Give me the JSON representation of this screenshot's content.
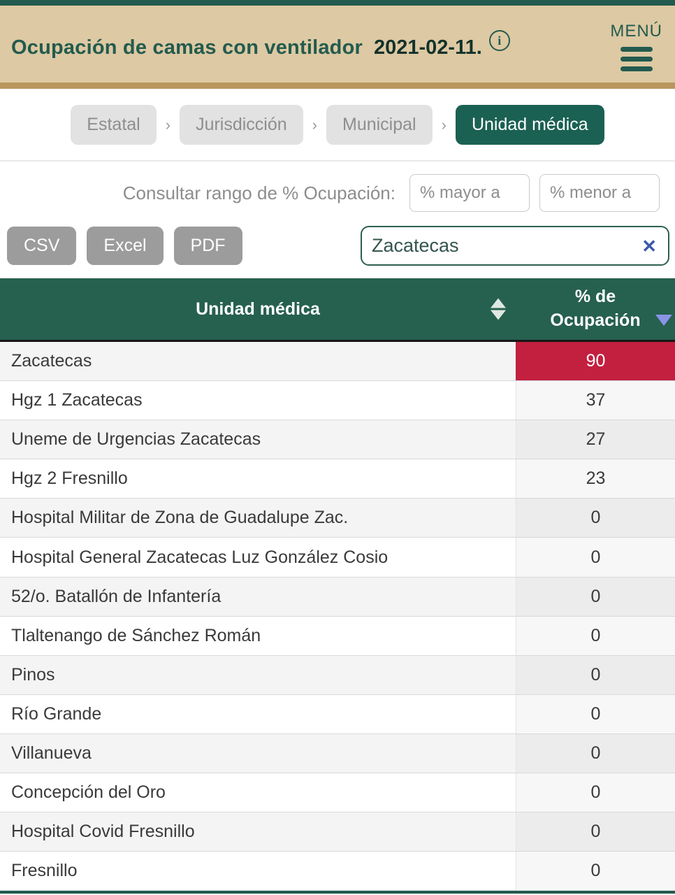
{
  "header": {
    "title": "Ocupación de camas con ventilador",
    "date": "2021-02-11.",
    "info_icon_glyph": "i",
    "menu_label": "MENÚ"
  },
  "breadcrumb": {
    "separator": "›",
    "items": [
      {
        "label": "Estatal",
        "active": false
      },
      {
        "label": "Jurisdicción",
        "active": false
      },
      {
        "label": "Municipal",
        "active": false
      },
      {
        "label": "Unidad médica",
        "active": true
      }
    ]
  },
  "filters": {
    "range_label": "Consultar rango de % Ocupación:",
    "greater_placeholder": "% mayor a",
    "less_placeholder": "% menor a"
  },
  "toolbar": {
    "export_buttons": [
      "CSV",
      "Excel",
      "PDF"
    ],
    "search_value": "Zacatecas",
    "clear_icon": "✕"
  },
  "table": {
    "col1_header": "Unidad médica",
    "col2_header_line1": "% de",
    "col2_header_line2": "Ocupación",
    "sorted_by": "% de Ocupación",
    "sort_direction": "descending",
    "rows": [
      {
        "unidad": "Zacatecas",
        "ocupacion": "90",
        "highlight": true
      },
      {
        "unidad": "Hgz 1 Zacatecas",
        "ocupacion": "37",
        "highlight": false
      },
      {
        "unidad": "Uneme de Urgencias Zacatecas",
        "ocupacion": "27",
        "highlight": false
      },
      {
        "unidad": "Hgz 2 Fresnillo",
        "ocupacion": "23",
        "highlight": false
      },
      {
        "unidad": "Hospital Militar de Zona de Guadalupe Zac.",
        "ocupacion": "0",
        "highlight": false
      },
      {
        "unidad": "Hospital General Zacatecas Luz González Cosio",
        "ocupacion": "0",
        "highlight": false
      },
      {
        "unidad": "52/o. Batallón de Infantería",
        "ocupacion": "0",
        "highlight": false
      },
      {
        "unidad": "Tlaltenango de Sánchez Román",
        "ocupacion": "0",
        "highlight": false
      },
      {
        "unidad": "Pinos",
        "ocupacion": "0",
        "highlight": false
      },
      {
        "unidad": "Río Grande",
        "ocupacion": "0",
        "highlight": false
      },
      {
        "unidad": "Villanueva",
        "ocupacion": "0",
        "highlight": false
      },
      {
        "unidad": "Concepción del Oro",
        "ocupacion": "0",
        "highlight": false
      },
      {
        "unidad": "Hospital Covid Fresnillo",
        "ocupacion": "0",
        "highlight": false
      },
      {
        "unidad": "Fresnillo",
        "ocupacion": "0",
        "highlight": false
      }
    ]
  },
  "colors": {
    "brand_green": "#235B4E",
    "header_tan": "#DDC9A3",
    "gold_strip": "#B9965E",
    "table_header_green": "#26604F",
    "alert_red": "#C32040",
    "sort_arrow_periwinkle": "#8A93E8",
    "clear_icon_blue": "#3B5AA9"
  }
}
